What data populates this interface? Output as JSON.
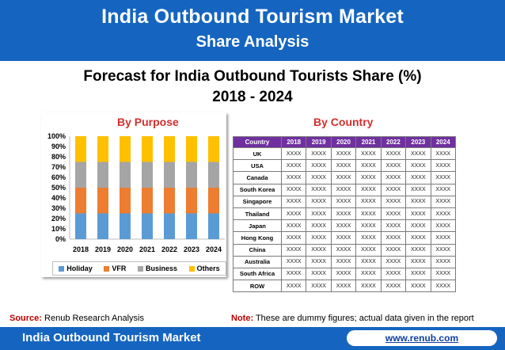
{
  "header": {
    "line1": "India Outbound Tourism Market",
    "line2": "Share Analysis"
  },
  "title": {
    "line1": "Forecast for India Outbound Tourists Share (%)",
    "line2": "2018 - 2024"
  },
  "purpose_title": "By Purpose",
  "country_title": "By Country",
  "chart_data": [
    {
      "type": "bar",
      "stacked": true,
      "title": "By Purpose",
      "categories": [
        "2018",
        "2019",
        "2020",
        "2021",
        "2022",
        "2023",
        "2024"
      ],
      "series": [
        {
          "name": "Holiday",
          "color": "#5b9bd5",
          "values": [
            25,
            25,
            25,
            25,
            25,
            25,
            25
          ]
        },
        {
          "name": "VFR",
          "color": "#ed7d31",
          "values": [
            25,
            25,
            25,
            25,
            25,
            25,
            25
          ]
        },
        {
          "name": "Business",
          "color": "#a5a5a5",
          "values": [
            25,
            25,
            25,
            25,
            25,
            25,
            25
          ]
        },
        {
          "name": "Others",
          "color": "#ffc000",
          "values": [
            25,
            25,
            25,
            25,
            25,
            25,
            25
          ]
        }
      ],
      "yticks": [
        "0%",
        "10%",
        "20%",
        "30%",
        "40%",
        "50%",
        "60%",
        "70%",
        "80%",
        "90%",
        "100%"
      ],
      "ylim": [
        0,
        100
      ],
      "legend": "bottom",
      "grid": false
    },
    {
      "type": "table",
      "title": "By Country",
      "columns": [
        "Country",
        "2018",
        "2019",
        "2020",
        "2021",
        "2022",
        "2023",
        "2024"
      ],
      "rows": [
        [
          "UK",
          "XXXX",
          "XXXX",
          "XXXX",
          "XXXX",
          "XXXX",
          "XXXX",
          "XXXX"
        ],
        [
          "USA",
          "XXXX",
          "XXXX",
          "XXXX",
          "XXXX",
          "XXXX",
          "XXXX",
          "XXXX"
        ],
        [
          "Canada",
          "XXXX",
          "XXXX",
          "XXXX",
          "XXXX",
          "XXXX",
          "XXXX",
          "XXXX"
        ],
        [
          "South Korea",
          "XXXX",
          "XXXX",
          "XXXX",
          "XXXX",
          "XXXX",
          "XXXX",
          "XXXX"
        ],
        [
          "Singapore",
          "XXXX",
          "XXXX",
          "XXXX",
          "XXXX",
          "XXXX",
          "XXXX",
          "XXXX"
        ],
        [
          "Thailand",
          "XXXX",
          "XXXX",
          "XXXX",
          "XXXX",
          "XXXX",
          "XXXX",
          "XXXX"
        ],
        [
          "Japan",
          "XXXX",
          "XXXX",
          "XXXX",
          "XXXX",
          "XXXX",
          "XXXX",
          "XXXX"
        ],
        [
          "Hong Kong",
          "XXXX",
          "XXXX",
          "XXXX",
          "XXXX",
          "XXXX",
          "XXXX",
          "XXXX"
        ],
        [
          "China",
          "XXXX",
          "XXXX",
          "XXXX",
          "XXXX",
          "XXXX",
          "XXXX",
          "XXXX"
        ],
        [
          "Australia",
          "XXXX",
          "XXXX",
          "XXXX",
          "XXXX",
          "XXXX",
          "XXXX",
          "XXXX"
        ],
        [
          "South Africa",
          "XXXX",
          "XXXX",
          "XXXX",
          "XXXX",
          "XXXX",
          "XXXX",
          "XXXX"
        ],
        [
          "ROW",
          "XXXX",
          "XXXX",
          "XXXX",
          "XXXX",
          "XXXX",
          "XXXX",
          "XXXX"
        ]
      ],
      "header_color": "#7030a0"
    }
  ],
  "source": {
    "label": "Source:",
    "text": " Renub Research Analysis"
  },
  "note": {
    "label": "Note:",
    "text": " These are dummy figures; actual data given in the report"
  },
  "footer": {
    "title": "India Outbound Tourism Market",
    "link": "www.renub.com"
  },
  "colors": {
    "brand_blue": "#1565c0",
    "heading_red": "#d32f2f"
  }
}
